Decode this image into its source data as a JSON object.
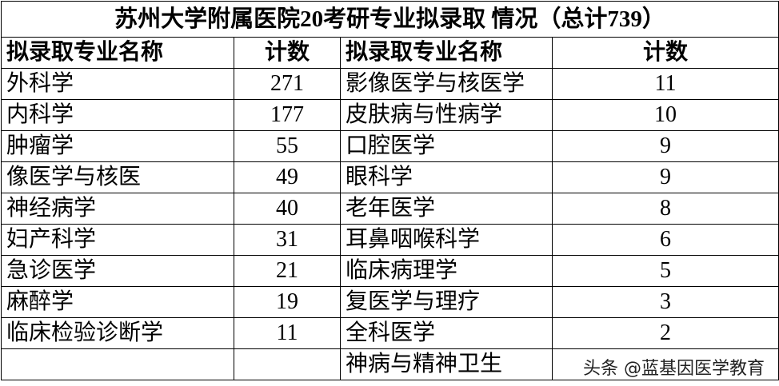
{
  "title": "苏州大学附属医院20考研专业拟录取 情况（总计739）",
  "table": {
    "headers": [
      "拟录取专业名称",
      "计数",
      "拟录取专业名称",
      "计数"
    ],
    "rows": [
      [
        "外科学",
        271,
        "影像医学与核医学",
        11
      ],
      [
        "内科学",
        177,
        "皮肤病与性病学",
        10
      ],
      [
        "肿瘤学",
        55,
        "口腔医学",
        9
      ],
      [
        "像医学与核医",
        49,
        "眼科学",
        9
      ],
      [
        "神经病学",
        40,
        "老年医学",
        8
      ],
      [
        "妇产科学",
        31,
        "耳鼻咽喉科学",
        6
      ],
      [
        "急诊医学",
        21,
        "临床病理学",
        5
      ],
      [
        "麻醉学",
        19,
        "复医学与理疗",
        3
      ],
      [
        "临床检验诊断学",
        11,
        "全科医学",
        2
      ],
      [
        null,
        null,
        "神病与精神卫生",
        null
      ]
    ]
  },
  "watermark": "头条 @蓝基因医学教育"
}
